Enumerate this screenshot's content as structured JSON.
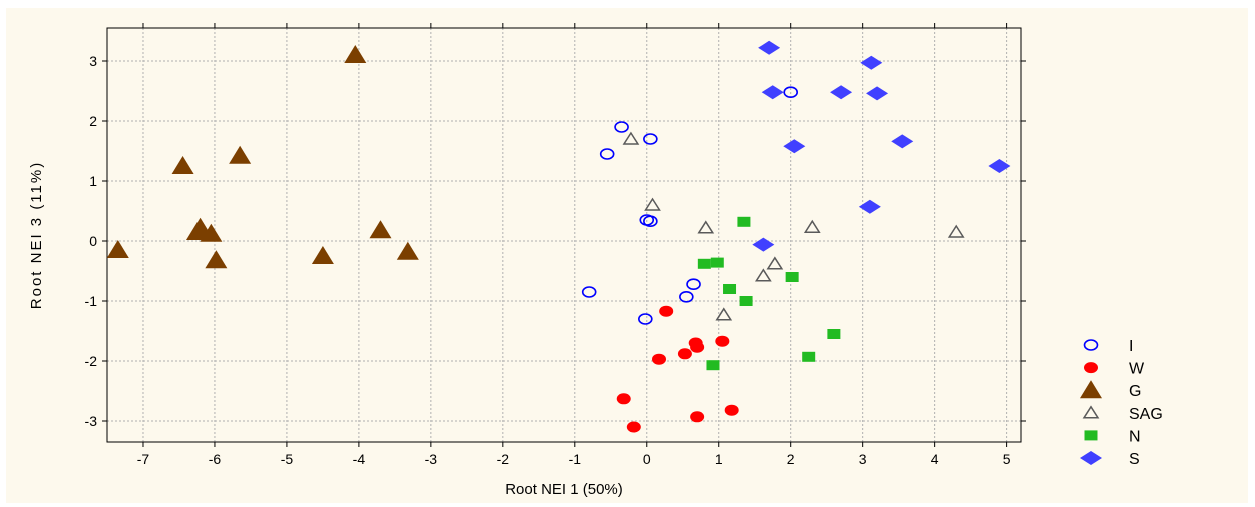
{
  "chart_data": {
    "type": "scatter",
    "title": "",
    "xlabel": "Root NEI 1 (50%)",
    "ylabel": "Root NEI 3 (11%)",
    "xlim": [
      -7.5,
      5.2
    ],
    "ylim": [
      -3.35,
      3.55
    ],
    "xticks": [
      -7,
      -6,
      -5,
      -4,
      -3,
      -2,
      -1,
      0,
      1,
      2,
      3,
      4,
      5
    ],
    "xtick_labels": [
      "-7",
      "-6",
      "-5",
      "-4",
      "-3",
      "-2",
      "-1",
      "0",
      "1",
      "2",
      "3",
      "4",
      "5"
    ],
    "yticks": [
      -3,
      -2,
      -1,
      0,
      1,
      2,
      3
    ],
    "ytick_labels": [
      "-3",
      "-2",
      "-1",
      "0",
      "1",
      "2",
      "3"
    ],
    "grid": true,
    "legend_position": "right",
    "series": [
      {
        "name": "I",
        "marker": "open-circle",
        "color": "#0000ff",
        "points": [
          [
            -0.35,
            1.9
          ],
          [
            0.05,
            1.7
          ],
          [
            -0.55,
            1.45
          ],
          [
            0.0,
            0.35
          ],
          [
            0.05,
            0.33
          ],
          [
            -0.8,
            -0.85
          ],
          [
            0.65,
            -0.72
          ],
          [
            0.55,
            -0.93
          ],
          [
            -0.02,
            -1.3
          ],
          [
            2.0,
            2.48
          ]
        ]
      },
      {
        "name": "W",
        "marker": "filled-circle",
        "color": "#ff0000",
        "points": [
          [
            0.27,
            -1.17
          ],
          [
            0.68,
            -1.7
          ],
          [
            0.7,
            -1.77
          ],
          [
            1.05,
            -1.67
          ],
          [
            0.53,
            -1.88
          ],
          [
            0.17,
            -1.97
          ],
          [
            -0.32,
            -2.63
          ],
          [
            0.7,
            -2.93
          ],
          [
            1.18,
            -2.82
          ],
          [
            -0.18,
            -3.1
          ]
        ]
      },
      {
        "name": "G",
        "marker": "filled-triangle",
        "color": "#7b3f00",
        "points": [
          [
            -4.05,
            3.1
          ],
          [
            -6.45,
            1.25
          ],
          [
            -5.65,
            1.42
          ],
          [
            -6.2,
            0.22
          ],
          [
            -6.25,
            0.15
          ],
          [
            -6.05,
            0.12
          ],
          [
            -5.98,
            -0.32
          ],
          [
            -7.35,
            -0.15
          ],
          [
            -4.5,
            -0.25
          ],
          [
            -3.7,
            0.18
          ],
          [
            -3.32,
            -0.18
          ]
        ]
      },
      {
        "name": "SAG",
        "marker": "open-triangle",
        "color": "#5a5a5a",
        "points": [
          [
            -0.22,
            1.7
          ],
          [
            0.08,
            0.6
          ],
          [
            0.82,
            0.22
          ],
          [
            2.3,
            0.23
          ],
          [
            4.3,
            0.15
          ],
          [
            1.78,
            -0.38
          ],
          [
            1.62,
            -0.58
          ],
          [
            1.07,
            -1.23
          ]
        ]
      },
      {
        "name": "N",
        "marker": "filled-square",
        "color": "#22bb22",
        "points": [
          [
            1.35,
            0.32
          ],
          [
            0.8,
            -0.38
          ],
          [
            0.98,
            -0.36
          ],
          [
            1.15,
            -0.8
          ],
          [
            2.02,
            -0.6
          ],
          [
            1.38,
            -1.0
          ],
          [
            2.6,
            -1.55
          ],
          [
            2.25,
            -1.93
          ],
          [
            0.92,
            -2.07
          ]
        ]
      },
      {
        "name": "S",
        "marker": "filled-diamond",
        "color": "#4040ff",
        "points": [
          [
            1.7,
            3.22
          ],
          [
            1.75,
            2.48
          ],
          [
            2.7,
            2.48
          ],
          [
            3.12,
            2.97
          ],
          [
            3.2,
            2.46
          ],
          [
            2.05,
            1.58
          ],
          [
            3.55,
            1.66
          ],
          [
            4.9,
            1.25
          ],
          [
            3.1,
            0.57
          ],
          [
            1.62,
            -0.06
          ]
        ]
      }
    ]
  }
}
